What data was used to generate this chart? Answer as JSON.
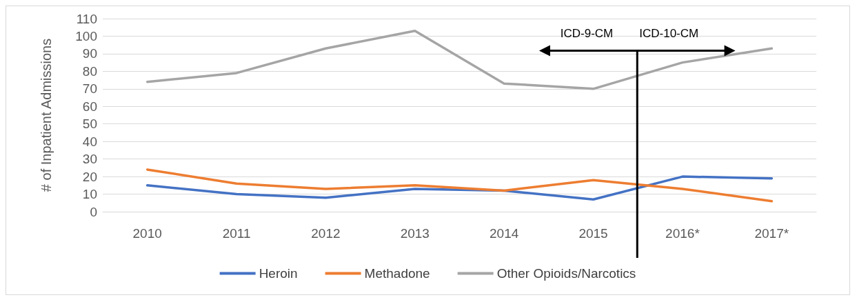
{
  "chart_data": {
    "type": "line",
    "ylabel": "# of Inpatient Admissions",
    "categories": [
      "2010",
      "2011",
      "2012",
      "2013",
      "2014",
      "2015",
      "2016*",
      "2017*"
    ],
    "series": [
      {
        "name": "Heroin",
        "color": "#4472c4",
        "values": [
          15,
          10,
          8,
          13,
          12,
          7,
          20,
          19
        ]
      },
      {
        "name": "Methadone",
        "color": "#ed7d31",
        "values": [
          24,
          16,
          13,
          15,
          12,
          18,
          13,
          6
        ]
      },
      {
        "name": "Other Opioids/Narcotics",
        "color": "#a5a5a5",
        "values": [
          74,
          79,
          93,
          103,
          73,
          70,
          85,
          93
        ]
      }
    ],
    "ylim": [
      0,
      110
    ],
    "yticks": [
      0,
      10,
      20,
      30,
      40,
      50,
      60,
      70,
      80,
      90,
      100,
      110
    ],
    "grid": "y",
    "legend": "bottom",
    "marker": "none",
    "line_style": "solid",
    "annotations": [
      "ICD-9-CM",
      "ICD-10-CM"
    ]
  }
}
